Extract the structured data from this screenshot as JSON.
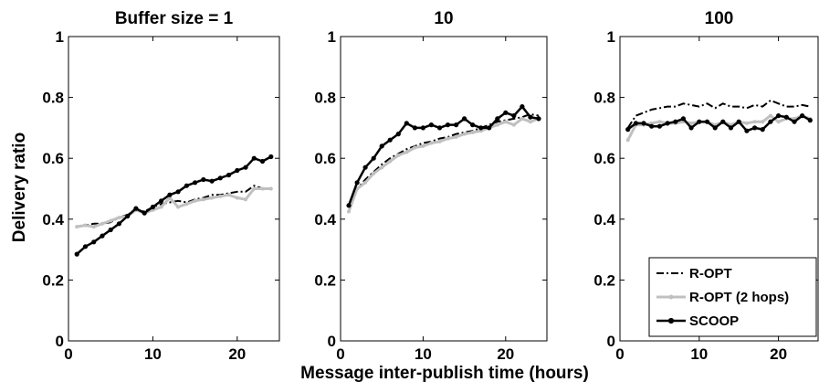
{
  "figure": {
    "xlabel": "Message inter-publish time (hours)",
    "ylabel": "Delivery ratio"
  },
  "legend": {
    "placement": "bottom-right",
    "panel": 2,
    "entries": [
      "R-OPT",
      "R-OPT (2 hops)",
      "SCOOP"
    ]
  },
  "chart_data": [
    {
      "type": "line",
      "title": "Buffer size = 1",
      "xlim": [
        0,
        25
      ],
      "ylim": [
        0,
        1
      ],
      "xticks": [
        0,
        10,
        20
      ],
      "yticks": [
        0,
        0.2,
        0.4,
        0.6,
        0.8,
        1
      ],
      "ytick_labels": [
        "0",
        "0.2",
        "0.4",
        "0.6",
        "0.8",
        "1"
      ],
      "grid": false,
      "x": [
        1,
        2,
        3,
        4,
        5,
        6,
        7,
        8,
        9,
        10,
        11,
        12,
        13,
        14,
        15,
        16,
        17,
        18,
        19,
        20,
        21,
        22,
        23,
        24
      ],
      "series": [
        {
          "name": "R-OPT",
          "color": "#000000",
          "style": "dashdot",
          "values": [
            0.375,
            0.38,
            0.385,
            0.385,
            0.39,
            0.405,
            0.415,
            0.43,
            0.425,
            0.44,
            0.45,
            0.455,
            0.46,
            0.455,
            0.465,
            0.47,
            0.48,
            0.48,
            0.485,
            0.49,
            0.49,
            0.51,
            0.5,
            0.5
          ]
        },
        {
          "name": "R-OPT (2 hops)",
          "color": "#c0c0c0",
          "style": "solid-marker",
          "values": [
            0.375,
            0.38,
            0.375,
            0.385,
            0.395,
            0.405,
            0.41,
            0.43,
            0.42,
            0.43,
            0.44,
            0.47,
            0.44,
            0.45,
            0.46,
            0.465,
            0.47,
            0.475,
            0.48,
            0.47,
            0.465,
            0.5,
            0.5,
            0.5
          ]
        },
        {
          "name": "SCOOP",
          "color": "#000000",
          "style": "solid-marker",
          "values": [
            0.285,
            0.31,
            0.325,
            0.345,
            0.365,
            0.385,
            0.41,
            0.435,
            0.42,
            0.44,
            0.46,
            0.48,
            0.49,
            0.51,
            0.52,
            0.53,
            0.525,
            0.535,
            0.545,
            0.56,
            0.57,
            0.6,
            0.59,
            0.605
          ]
        }
      ]
    },
    {
      "type": "line",
      "title": "10",
      "xlim": [
        0,
        25
      ],
      "ylim": [
        0,
        1
      ],
      "xticks": [
        0,
        10,
        20
      ],
      "yticks": [
        0,
        0.2,
        0.4,
        0.6,
        0.8,
        1
      ],
      "ytick_labels": [
        "0",
        "0.2",
        "0.4",
        "0.6",
        "0.8",
        "1"
      ],
      "grid": false,
      "x": [
        1,
        2,
        3,
        4,
        5,
        6,
        7,
        8,
        9,
        10,
        11,
        12,
        13,
        14,
        15,
        16,
        17,
        18,
        19,
        20,
        21,
        22,
        23,
        24
      ],
      "series": [
        {
          "name": "R-OPT",
          "color": "#000000",
          "style": "dashdot",
          "values": [
            0.44,
            0.5,
            0.53,
            0.555,
            0.58,
            0.6,
            0.615,
            0.63,
            0.64,
            0.65,
            0.655,
            0.665,
            0.67,
            0.68,
            0.685,
            0.69,
            0.7,
            0.71,
            0.72,
            0.725,
            0.73,
            0.735,
            0.745,
            0.74
          ]
        },
        {
          "name": "R-OPT (2 hops)",
          "color": "#c0c0c0",
          "style": "solid-marker",
          "values": [
            0.425,
            0.5,
            0.52,
            0.55,
            0.57,
            0.59,
            0.61,
            0.62,
            0.635,
            0.64,
            0.65,
            0.655,
            0.665,
            0.67,
            0.68,
            0.685,
            0.69,
            0.7,
            0.71,
            0.72,
            0.71,
            0.73,
            0.72,
            0.73
          ]
        },
        {
          "name": "SCOOP",
          "color": "#000000",
          "style": "solid-marker",
          "values": [
            0.445,
            0.52,
            0.57,
            0.6,
            0.64,
            0.66,
            0.68,
            0.715,
            0.7,
            0.7,
            0.71,
            0.7,
            0.71,
            0.71,
            0.73,
            0.71,
            0.7,
            0.7,
            0.73,
            0.75,
            0.74,
            0.77,
            0.735,
            0.73
          ]
        }
      ]
    },
    {
      "type": "line",
      "title": "100",
      "xlim": [
        0,
        25
      ],
      "ylim": [
        0,
        1
      ],
      "xticks": [
        0,
        10,
        20
      ],
      "yticks": [
        0,
        0.2,
        0.4,
        0.6,
        0.8,
        1
      ],
      "ytick_labels": [
        "0",
        "0.2",
        "0.4",
        "0.6",
        "0.8",
        "1"
      ],
      "grid": false,
      "x": [
        1,
        2,
        3,
        4,
        5,
        6,
        7,
        8,
        9,
        10,
        11,
        12,
        13,
        14,
        15,
        16,
        17,
        18,
        19,
        20,
        21,
        22,
        23,
        24
      ],
      "series": [
        {
          "name": "R-OPT",
          "color": "#000000",
          "style": "dashdot",
          "values": [
            0.7,
            0.74,
            0.75,
            0.76,
            0.765,
            0.77,
            0.77,
            0.78,
            0.775,
            0.77,
            0.78,
            0.765,
            0.78,
            0.77,
            0.77,
            0.765,
            0.775,
            0.77,
            0.79,
            0.78,
            0.77,
            0.77,
            0.775,
            0.77
          ]
        },
        {
          "name": "R-OPT (2 hops)",
          "color": "#c0c0c0",
          "style": "solid-marker",
          "values": [
            0.66,
            0.71,
            0.71,
            0.715,
            0.72,
            0.715,
            0.715,
            0.72,
            0.715,
            0.72,
            0.72,
            0.71,
            0.72,
            0.71,
            0.72,
            0.715,
            0.72,
            0.72,
            0.74,
            0.72,
            0.73,
            0.73,
            0.74,
            0.73
          ]
        },
        {
          "name": "SCOOP",
          "color": "#000000",
          "style": "solid-marker",
          "values": [
            0.695,
            0.715,
            0.715,
            0.705,
            0.705,
            0.715,
            0.72,
            0.73,
            0.7,
            0.72,
            0.72,
            0.7,
            0.72,
            0.7,
            0.72,
            0.69,
            0.7,
            0.695,
            0.72,
            0.74,
            0.735,
            0.72,
            0.74,
            0.725
          ]
        }
      ]
    }
  ]
}
